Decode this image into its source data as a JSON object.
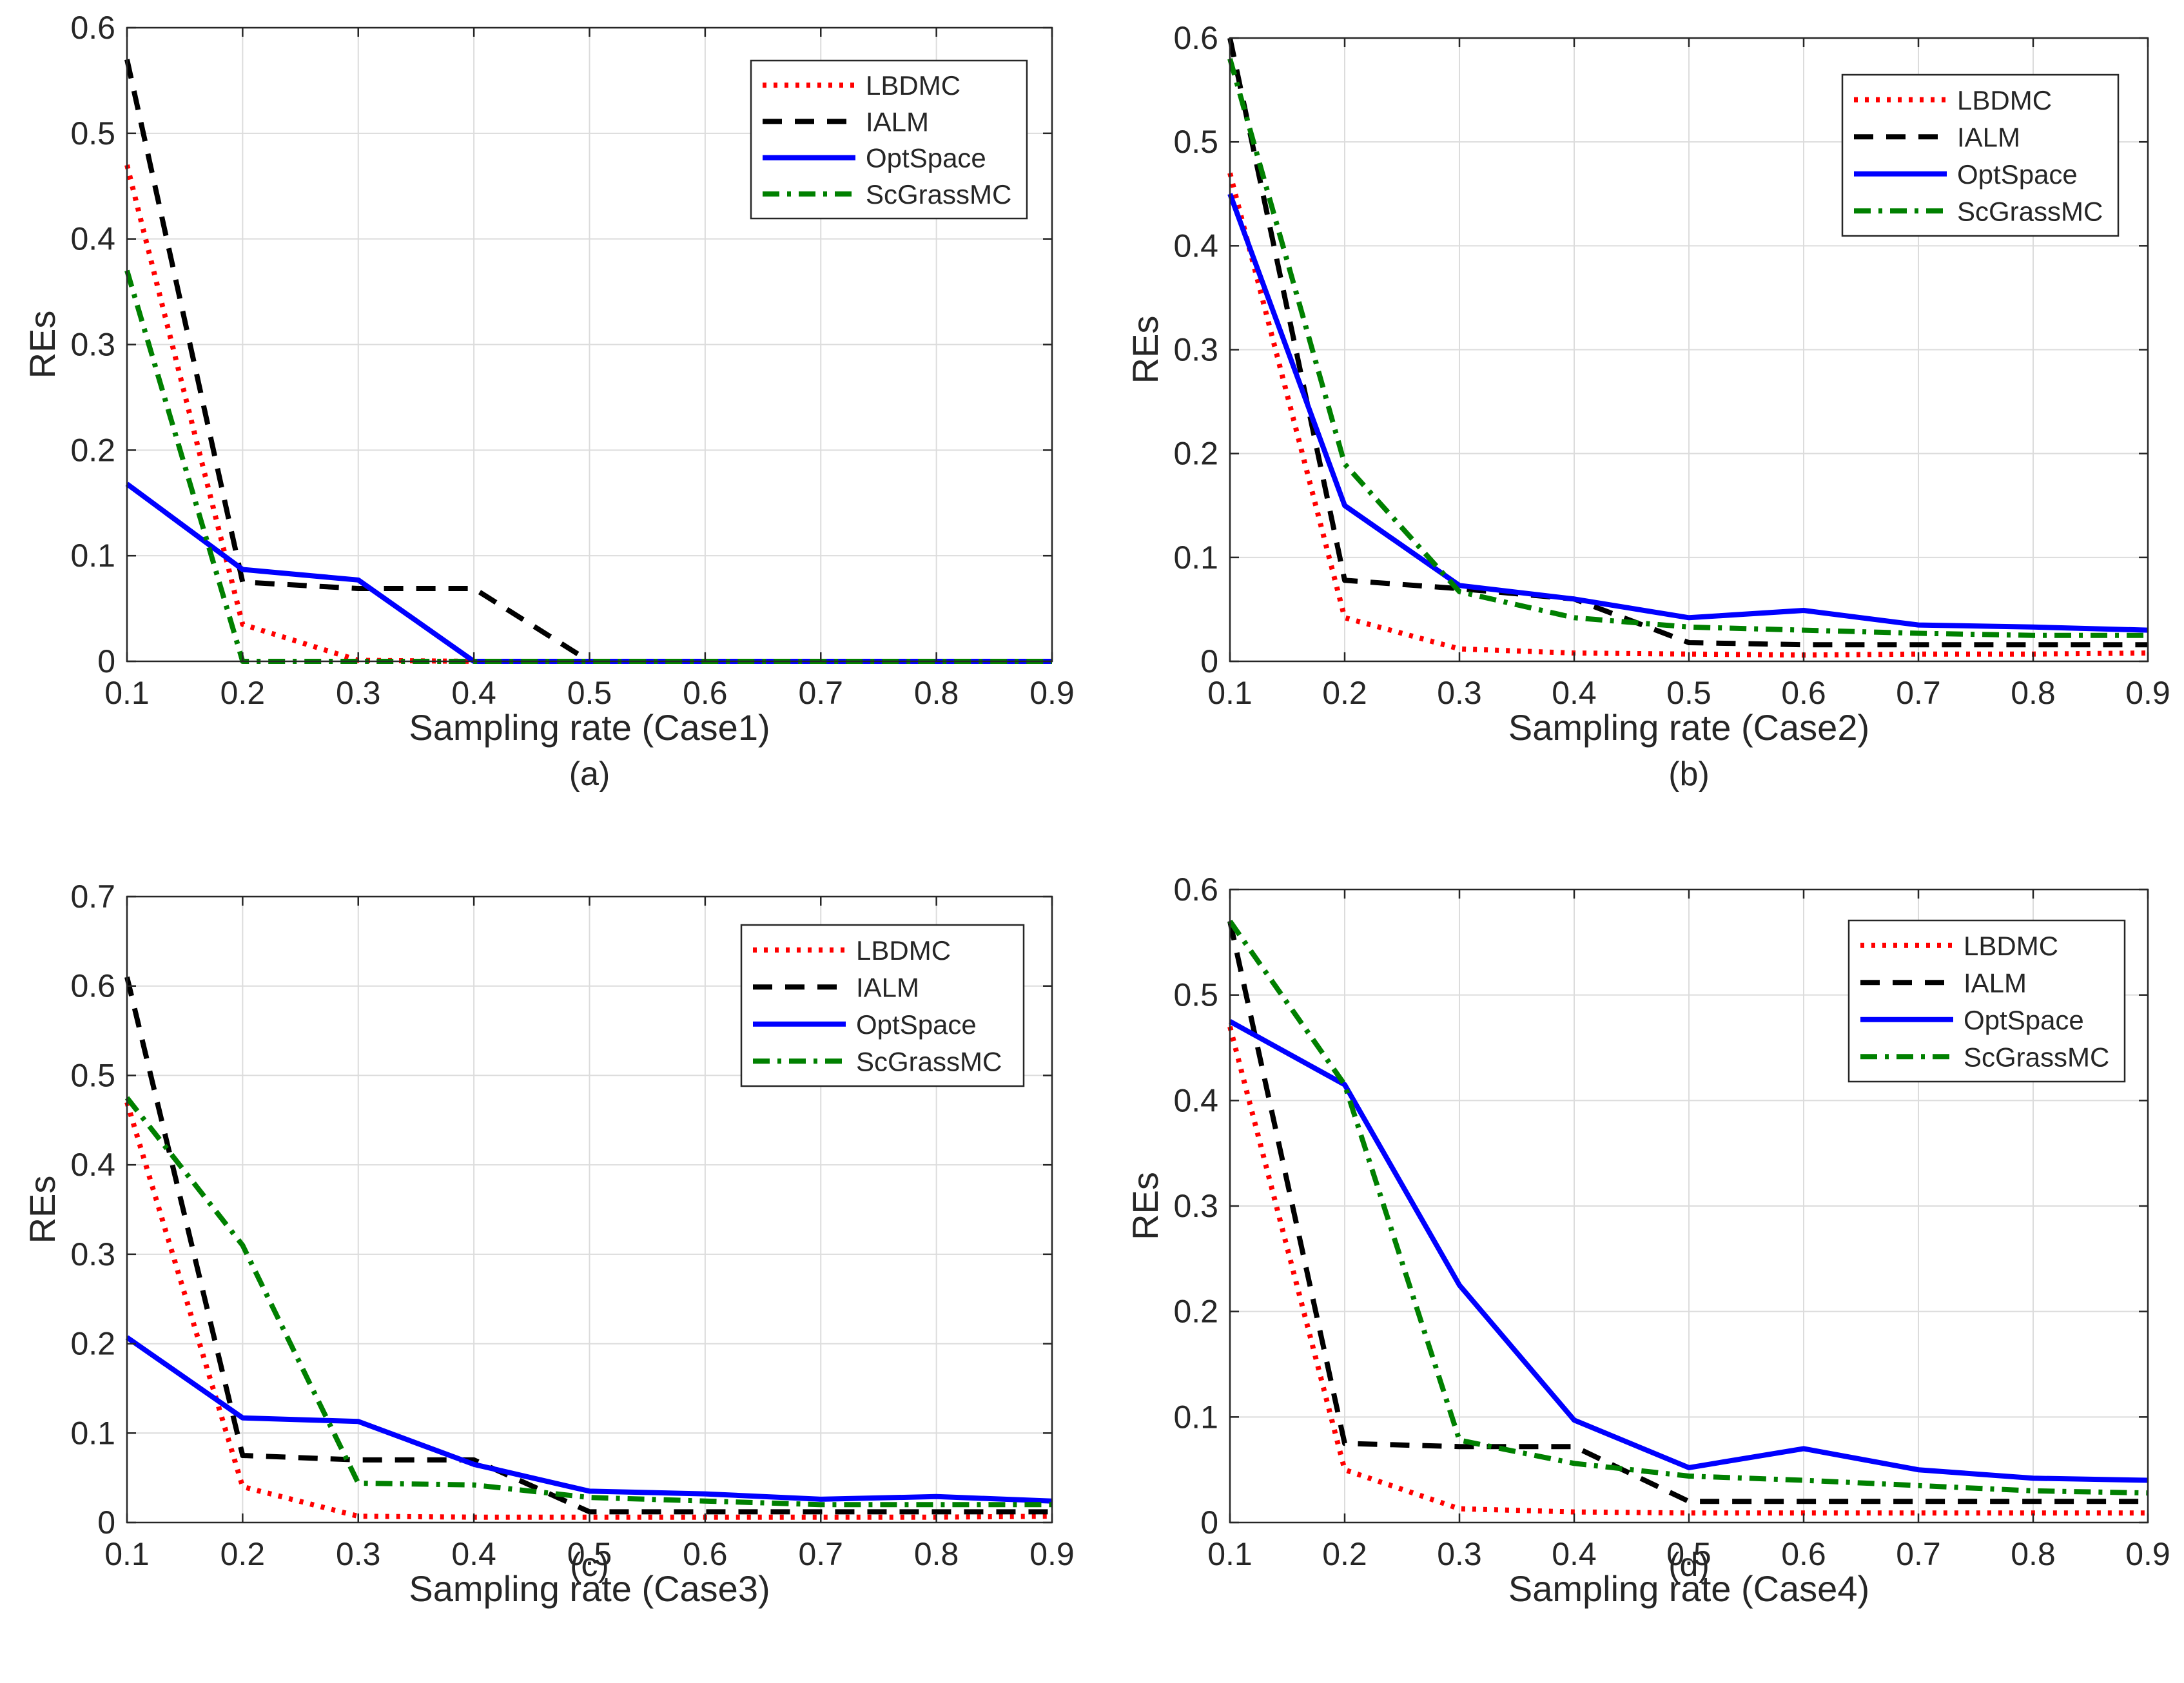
{
  "series_styles": [
    {
      "name": "LBDMC",
      "color": "#ff0000",
      "dash": "dotted"
    },
    {
      "name": "IALM",
      "color": "#000000",
      "dash": "dashed"
    },
    {
      "name": "OptSpace",
      "color": "#0000ff",
      "dash": "solid"
    },
    {
      "name": "ScGrassMC",
      "color": "#008000",
      "dash": "dashdot"
    }
  ],
  "chart_data": [
    {
      "type": "line",
      "panel_label": "(a)",
      "xlabel": "Sampling rate (Case1)",
      "ylabel": "REs",
      "x": [
        0.1,
        0.2,
        0.3,
        0.4,
        0.5,
        0.6,
        0.7,
        0.8,
        0.9
      ],
      "xlim": [
        0.1,
        0.9
      ],
      "ylim": [
        0,
        0.6
      ],
      "xticks": [
        "0.1",
        "0.2",
        "0.3",
        "0.4",
        "0.5",
        "0.6",
        "0.7",
        "0.8",
        "0.9"
      ],
      "yticks": [
        "0",
        "0.1",
        "0.2",
        "0.3",
        "0.4",
        "0.5",
        "0.6"
      ],
      "grid": true,
      "legend_position": "top-right",
      "series": [
        {
          "name": "LBDMC",
          "values": [
            0.47,
            0.035,
            0.001,
            0,
            0,
            0,
            0,
            0,
            0
          ]
        },
        {
          "name": "IALM",
          "values": [
            0.57,
            0.075,
            0.069,
            0.069,
            0.0,
            0,
            0,
            0,
            0
          ]
        },
        {
          "name": "OptSpace",
          "values": [
            0.168,
            0.087,
            0.077,
            0.0,
            0,
            0,
            0,
            0,
            0
          ]
        },
        {
          "name": "ScGrassMC",
          "values": [
            0.37,
            0.0,
            0,
            0,
            0,
            0,
            0,
            0,
            0
          ]
        }
      ]
    },
    {
      "type": "line",
      "panel_label": "(b)",
      "xlabel": "Sampling rate (Case2)",
      "ylabel": "REs",
      "x": [
        0.1,
        0.2,
        0.3,
        0.4,
        0.5,
        0.6,
        0.7,
        0.8,
        0.9
      ],
      "xlim": [
        0.1,
        0.9
      ],
      "ylim": [
        0,
        0.6
      ],
      "xticks": [
        "0.1",
        "0.2",
        "0.3",
        "0.4",
        "0.5",
        "0.6",
        "0.7",
        "0.8",
        "0.9"
      ],
      "yticks": [
        "0",
        "0.1",
        "0.2",
        "0.3",
        "0.4",
        "0.5",
        "0.6"
      ],
      "grid": true,
      "legend_position": "top-right",
      "series": [
        {
          "name": "LBDMC",
          "values": [
            0.47,
            0.042,
            0.012,
            0.008,
            0.007,
            0.006,
            0.007,
            0.007,
            0.008
          ]
        },
        {
          "name": "IALM",
          "values": [
            0.6,
            0.078,
            0.07,
            0.06,
            0.018,
            0.016,
            0.016,
            0.016,
            0.016
          ]
        },
        {
          "name": "OptSpace",
          "values": [
            0.45,
            0.15,
            0.073,
            0.06,
            0.042,
            0.049,
            0.035,
            0.033,
            0.03
          ]
        },
        {
          "name": "ScGrassMC",
          "values": [
            0.58,
            0.19,
            0.067,
            0.042,
            0.033,
            0.03,
            0.027,
            0.025,
            0.025
          ]
        }
      ]
    },
    {
      "type": "line",
      "panel_label": "(c)",
      "xlabel": "Sampling rate (Case3)",
      "ylabel": "REs",
      "x": [
        0.1,
        0.2,
        0.3,
        0.4,
        0.5,
        0.6,
        0.7,
        0.8,
        0.9
      ],
      "xlim": [
        0.1,
        0.9
      ],
      "ylim": [
        0,
        0.7
      ],
      "xticks": [
        "0.1",
        "0.2",
        "0.3",
        "0.4",
        "0.5",
        "0.6",
        "0.7",
        "0.8",
        "0.9"
      ],
      "yticks": [
        "0",
        "0.1",
        "0.2",
        "0.3",
        "0.4",
        "0.5",
        "0.6",
        "0.7"
      ],
      "grid": true,
      "legend_position": "top-right",
      "series": [
        {
          "name": "LBDMC",
          "values": [
            0.47,
            0.04,
            0.007,
            0.006,
            0.006,
            0.006,
            0.006,
            0.006,
            0.007
          ]
        },
        {
          "name": "IALM",
          "values": [
            0.61,
            0.075,
            0.07,
            0.07,
            0.012,
            0.012,
            0.012,
            0.012,
            0.012
          ]
        },
        {
          "name": "OptSpace",
          "values": [
            0.207,
            0.117,
            0.113,
            0.065,
            0.035,
            0.032,
            0.026,
            0.029,
            0.024
          ]
        },
        {
          "name": "ScGrassMC",
          "values": [
            0.475,
            0.31,
            0.044,
            0.042,
            0.028,
            0.024,
            0.02,
            0.02,
            0.02
          ]
        }
      ]
    },
    {
      "type": "line",
      "panel_label": "(d)",
      "xlabel": "Sampling rate (Case4)",
      "ylabel": "REs",
      "x": [
        0.1,
        0.2,
        0.3,
        0.4,
        0.5,
        0.6,
        0.7,
        0.8,
        0.9
      ],
      "xlim": [
        0.1,
        0.9
      ],
      "ylim": [
        0,
        0.6
      ],
      "xticks": [
        "0.1",
        "0.2",
        "0.3",
        "0.4",
        "0.5",
        "0.6",
        "0.7",
        "0.8",
        "0.9"
      ],
      "yticks": [
        "0",
        "0.1",
        "0.2",
        "0.3",
        "0.4",
        "0.5",
        "0.6"
      ],
      "grid": true,
      "legend_position": "top-right",
      "series": [
        {
          "name": "LBDMC",
          "values": [
            0.47,
            0.05,
            0.013,
            0.01,
            0.009,
            0.009,
            0.009,
            0.009,
            0.009
          ]
        },
        {
          "name": "IALM",
          "values": [
            0.57,
            0.075,
            0.072,
            0.072,
            0.02,
            0.02,
            0.02,
            0.02,
            0.02
          ]
        },
        {
          "name": "OptSpace",
          "values": [
            0.475,
            0.415,
            0.225,
            0.097,
            0.052,
            0.07,
            0.05,
            0.042,
            0.04
          ]
        },
        {
          "name": "ScGrassMC",
          "values": [
            0.57,
            0.415,
            0.078,
            0.056,
            0.044,
            0.04,
            0.035,
            0.03,
            0.028
          ]
        }
      ]
    }
  ]
}
